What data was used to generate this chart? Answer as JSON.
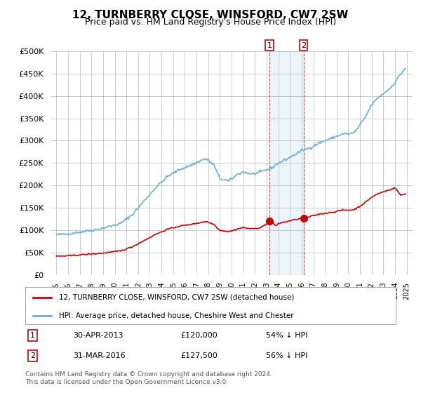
{
  "title": "12, TURNBERRY CLOSE, WINSFORD, CW7 2SW",
  "subtitle": "Price paid vs. HM Land Registry's House Price Index (HPI)",
  "hpi_color": "#6baed6",
  "price_color": "#cc0000",
  "background_color": "#ffffff",
  "grid_color": "#cccccc",
  "ylim": [
    0,
    500000
  ],
  "yticks": [
    0,
    50000,
    100000,
    150000,
    200000,
    250000,
    300000,
    350000,
    400000,
    450000,
    500000
  ],
  "xlabel_years": [
    "1995",
    "1996",
    "1997",
    "1998",
    "1999",
    "2000",
    "2001",
    "2002",
    "2003",
    "2004",
    "2005",
    "2006",
    "2007",
    "2008",
    "2009",
    "2010",
    "2011",
    "2012",
    "2013",
    "2014",
    "2015",
    "2016",
    "2017",
    "2018",
    "2019",
    "2020",
    "2021",
    "2022",
    "2023",
    "2024",
    "2025"
  ],
  "sale1_date": "30-APR-2013",
  "sale1_price": 120000,
  "sale1_hpi": "54% ↓ HPI",
  "sale1_label": "1",
  "sale2_date": "31-MAR-2016",
  "sale2_price": 127500,
  "sale2_hpi": "56% ↓ HPI",
  "sale2_label": "2",
  "legend_property": "12, TURNBERRY CLOSE, WINSFORD, CW7 2SW (detached house)",
  "legend_hpi": "HPI: Average price, detached house, Cheshire West and Chester",
  "footnote": "Contains HM Land Registry data © Crown copyright and database right 2024.\nThis data is licensed under the Open Government Licence v3.0."
}
